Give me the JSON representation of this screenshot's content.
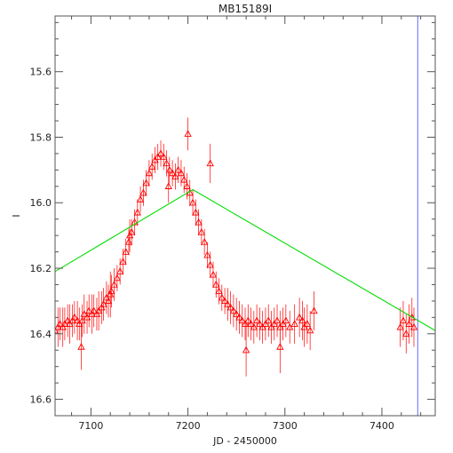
{
  "chart_data": {
    "type": "scatter",
    "title": "MB15189I",
    "xlabel": "JD - 2450000",
    "ylabel": "I",
    "xlim": [
      7063,
      7455
    ],
    "ylim": [
      16.65,
      15.43
    ],
    "y_inverted": true,
    "x_ticks": [
      7100,
      7200,
      7300,
      7400
    ],
    "x_tick_labels": [
      "7100",
      "7200",
      "7300",
      "7400"
    ],
    "y_ticks": [
      15.6,
      15.8,
      16.0,
      16.2,
      16.4,
      16.6
    ],
    "y_tick_labels": [
      "15.6",
      "15.8",
      "16.0",
      "16.2",
      "16.4",
      "16.6"
    ],
    "grid": false,
    "colors": {
      "points": "#ff0000",
      "model": "#00dd00",
      "marker_line": "#8080ff",
      "axes": "#555555"
    },
    "series": [
      {
        "kind": "points_with_errorbars",
        "marker": "triangle-open",
        "color": "#ff0000",
        "x": [
          7063,
          7066,
          7068,
          7071,
          7073,
          7076,
          7078,
          7081,
          7083,
          7086,
          7088,
          7091,
          7093,
          7096,
          7098,
          7101,
          7103,
          7106,
          7108,
          7111,
          7113,
          7116,
          7118,
          7121,
          7124,
          7127,
          7130,
          7133,
          7136,
          7139,
          7142,
          7145,
          7148,
          7151,
          7154,
          7157,
          7160,
          7163,
          7166,
          7169,
          7172,
          7175,
          7178,
          7181,
          7184,
          7187,
          7190,
          7193,
          7196,
          7199,
          7202,
          7205,
          7208,
          7211,
          7214,
          7217,
          7220,
          7223,
          7226,
          7229,
          7232,
          7235,
          7238,
          7241,
          7244,
          7247,
          7250,
          7253,
          7256,
          7259,
          7262,
          7265,
          7268,
          7271,
          7274,
          7277,
          7280,
          7283,
          7286,
          7289,
          7292,
          7295,
          7298,
          7301,
          7305,
          7310,
          7315,
          7318,
          7320,
          7323,
          7326,
          7419,
          7422,
          7425,
          7428,
          7431,
          7433,
          7090,
          7120,
          7140,
          7180,
          7200,
          7223,
          7260,
          7295,
          7330
        ],
        "y": [
          16.39,
          16.38,
          16.37,
          16.38,
          16.37,
          16.36,
          16.37,
          16.36,
          16.35,
          16.36,
          16.37,
          16.36,
          16.34,
          16.35,
          16.33,
          16.34,
          16.33,
          16.34,
          16.33,
          16.32,
          16.31,
          16.29,
          16.3,
          16.27,
          16.25,
          16.23,
          16.21,
          16.18,
          16.15,
          16.12,
          16.09,
          16.06,
          16.03,
          15.99,
          15.97,
          15.94,
          15.91,
          15.89,
          15.87,
          15.86,
          15.85,
          15.86,
          15.88,
          15.9,
          15.91,
          15.92,
          15.9,
          15.91,
          15.93,
          15.95,
          15.97,
          16.0,
          16.03,
          16.06,
          16.09,
          16.12,
          16.16,
          16.19,
          16.22,
          16.25,
          16.27,
          16.29,
          16.3,
          16.31,
          16.32,
          16.33,
          16.34,
          16.35,
          16.36,
          16.37,
          16.36,
          16.37,
          16.38,
          16.36,
          16.37,
          16.38,
          16.37,
          16.36,
          16.38,
          16.37,
          16.36,
          16.38,
          16.37,
          16.36,
          16.38,
          16.37,
          16.35,
          16.36,
          16.38,
          16.37,
          16.39,
          16.38,
          16.36,
          16.4,
          16.37,
          16.35,
          16.38,
          16.44,
          16.28,
          16.1,
          15.95,
          15.79,
          15.88,
          16.45,
          16.44,
          16.33
        ],
        "yerr": [
          0.07,
          0.06,
          0.05,
          0.06,
          0.05,
          0.05,
          0.06,
          0.05,
          0.05,
          0.06,
          0.05,
          0.05,
          0.06,
          0.05,
          0.05,
          0.06,
          0.05,
          0.05,
          0.06,
          0.05,
          0.05,
          0.05,
          0.05,
          0.05,
          0.05,
          0.04,
          0.04,
          0.04,
          0.04,
          0.04,
          0.04,
          0.04,
          0.04,
          0.04,
          0.04,
          0.04,
          0.04,
          0.04,
          0.04,
          0.04,
          0.04,
          0.04,
          0.04,
          0.04,
          0.04,
          0.04,
          0.04,
          0.04,
          0.04,
          0.04,
          0.04,
          0.04,
          0.04,
          0.04,
          0.04,
          0.04,
          0.04,
          0.04,
          0.04,
          0.04,
          0.04,
          0.04,
          0.04,
          0.05,
          0.05,
          0.05,
          0.05,
          0.05,
          0.05,
          0.05,
          0.05,
          0.05,
          0.05,
          0.05,
          0.05,
          0.05,
          0.05,
          0.05,
          0.05,
          0.05,
          0.05,
          0.05,
          0.05,
          0.05,
          0.05,
          0.06,
          0.06,
          0.06,
          0.06,
          0.06,
          0.06,
          0.06,
          0.06,
          0.06,
          0.06,
          0.06,
          0.06,
          0.07,
          0.07,
          0.05,
          0.05,
          0.05,
          0.06,
          0.08,
          0.08,
          0.06
        ]
      },
      {
        "kind": "line",
        "color": "#00dd00",
        "x": [
          7063,
          7205,
          7455
        ],
        "y": [
          16.21,
          15.96,
          16.39
        ]
      },
      {
        "kind": "vline",
        "color": "#8080ff",
        "x": [
          7437
        ]
      }
    ]
  }
}
